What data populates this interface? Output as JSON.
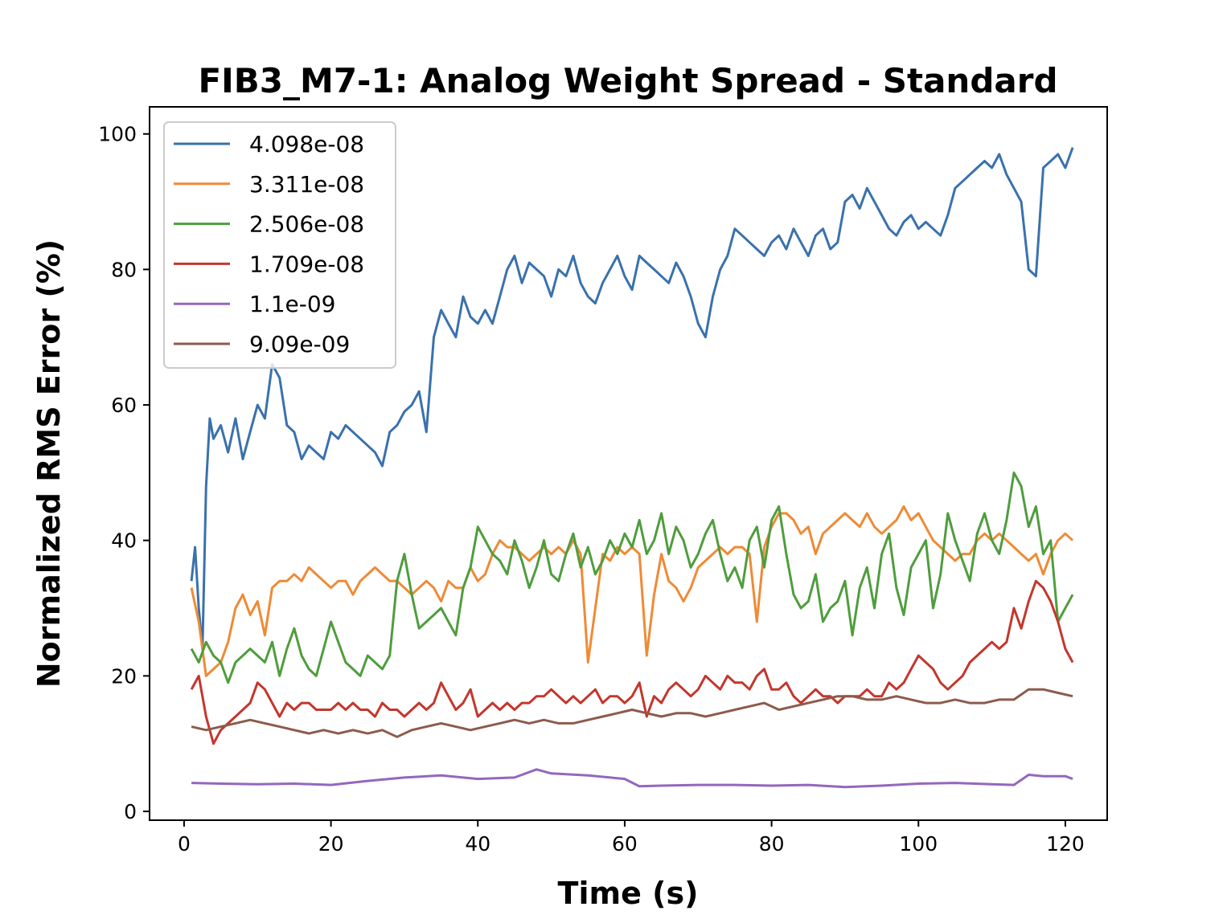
{
  "chart_data": {
    "type": "line",
    "title": "FIB3_M7-1: Analog Weight Spread - Standard",
    "xlabel": "Time (s)",
    "ylabel": "Normalized RMS Error (%)",
    "xlim": [
      -4.7,
      125.7
    ],
    "ylim": [
      -1.3,
      104
    ],
    "xticks": [
      0,
      20,
      40,
      60,
      80,
      100,
      120
    ],
    "yticks": [
      0,
      20,
      40,
      60,
      80,
      100
    ],
    "grid": false,
    "legend_position": "top-left",
    "series": [
      {
        "name": "4.098e-08",
        "color": "#3a71ad",
        "x": [
          1,
          1.5,
          2,
          2.5,
          3,
          3.5,
          4,
          5,
          6,
          7,
          8,
          9,
          10,
          11,
          12,
          13,
          14,
          15,
          16,
          17,
          18,
          19,
          20,
          21,
          22,
          23,
          24,
          25,
          26,
          27,
          28,
          29,
          30,
          31,
          32,
          33,
          34,
          35,
          36,
          37,
          38,
          39,
          40,
          41,
          42,
          43,
          44,
          45,
          46,
          47,
          48,
          49,
          50,
          51,
          52,
          53,
          54,
          55,
          56,
          57,
          58,
          59,
          60,
          61,
          62,
          63,
          64,
          65,
          66,
          67,
          68,
          69,
          70,
          71,
          72,
          73,
          74,
          75,
          76,
          77,
          78,
          79,
          80,
          81,
          82,
          83,
          84,
          85,
          86,
          87,
          88,
          89,
          90,
          91,
          92,
          93,
          94,
          95,
          96,
          97,
          98,
          99,
          100,
          101,
          102,
          103,
          104,
          105,
          106,
          107,
          108,
          109,
          110,
          111,
          112,
          113,
          114,
          115,
          116,
          117,
          118,
          119,
          120,
          121
        ],
        "y": [
          34,
          39,
          30,
          24,
          48,
          58,
          55,
          57,
          53,
          58,
          52,
          56,
          60,
          58,
          66,
          64,
          57,
          56,
          52,
          54,
          53,
          52,
          56,
          55,
          57,
          56,
          55,
          54,
          53,
          51,
          56,
          57,
          59,
          60,
          62,
          56,
          70,
          74,
          72,
          70,
          76,
          73,
          72,
          74,
          72,
          76,
          80,
          82,
          78,
          81,
          80,
          79,
          76,
          80,
          79,
          82,
          78,
          76,
          75,
          78,
          80,
          82,
          79,
          77,
          82,
          81,
          80,
          79,
          78,
          81,
          79,
          76,
          72,
          70,
          76,
          80,
          82,
          86,
          85,
          84,
          83,
          82,
          84,
          85,
          83,
          86,
          84,
          82,
          85,
          86,
          83,
          84,
          90,
          91,
          89,
          92,
          90,
          88,
          86,
          85,
          87,
          88,
          86,
          87,
          86,
          85,
          88,
          92,
          93,
          94,
          95,
          96,
          95,
          97,
          94,
          92,
          90,
          80,
          79,
          95,
          96,
          97,
          95,
          98
        ]
      },
      {
        "name": "3.311e-08",
        "color": "#ef8a35",
        "x": [
          1,
          2,
          3,
          4,
          5,
          6,
          7,
          8,
          9,
          10,
          11,
          12,
          13,
          14,
          15,
          16,
          17,
          18,
          19,
          20,
          21,
          22,
          23,
          24,
          25,
          26,
          27,
          28,
          29,
          30,
          31,
          32,
          33,
          34,
          35,
          36,
          37,
          38,
          39,
          40,
          41,
          42,
          43,
          44,
          45,
          46,
          47,
          48,
          49,
          50,
          51,
          52,
          53,
          54,
          55,
          56,
          57,
          58,
          59,
          60,
          61,
          62,
          63,
          64,
          65,
          66,
          67,
          68,
          69,
          70,
          71,
          72,
          73,
          74,
          75,
          76,
          77,
          78,
          79,
          80,
          81,
          82,
          83,
          84,
          85,
          86,
          87,
          88,
          89,
          90,
          91,
          92,
          93,
          94,
          95,
          96,
          97,
          98,
          99,
          100,
          101,
          102,
          103,
          104,
          105,
          106,
          107,
          108,
          109,
          110,
          111,
          112,
          113,
          114,
          115,
          116,
          117,
          118,
          119,
          120,
          121
        ],
        "y": [
          33,
          28,
          20,
          21,
          22,
          25,
          30,
          32,
          29,
          31,
          26,
          33,
          34,
          34,
          35,
          34,
          36,
          35,
          34,
          33,
          34,
          34,
          32,
          34,
          35,
          36,
          35,
          34,
          34,
          33,
          32,
          33,
          34,
          33,
          31,
          34,
          33,
          33,
          36,
          34,
          35,
          38,
          40,
          39,
          39,
          38,
          37,
          38,
          39,
          38,
          39,
          38,
          40,
          38,
          22,
          30,
          38,
          37,
          39,
          38,
          39,
          38,
          23,
          32,
          38,
          34,
          33,
          31,
          33,
          36,
          37,
          38,
          39,
          38,
          39,
          39,
          38,
          28,
          39,
          42,
          44,
          44,
          43,
          41,
          42,
          38,
          41,
          42,
          43,
          44,
          43,
          42,
          44,
          42,
          41,
          42,
          43,
          45,
          43,
          44,
          42,
          40,
          39,
          38,
          37,
          38,
          38,
          40,
          41,
          40,
          41,
          40,
          39,
          38,
          37,
          38,
          35,
          38,
          40,
          41,
          40
        ]
      },
      {
        "name": "2.506e-08",
        "color": "#4f9d3d",
        "x": [
          1,
          2,
          3,
          4,
          5,
          6,
          7,
          8,
          9,
          10,
          11,
          12,
          13,
          14,
          15,
          16,
          17,
          18,
          19,
          20,
          21,
          22,
          23,
          24,
          25,
          26,
          27,
          28,
          29,
          30,
          31,
          32,
          33,
          34,
          35,
          36,
          37,
          38,
          39,
          40,
          41,
          42,
          43,
          44,
          45,
          46,
          47,
          48,
          49,
          50,
          51,
          52,
          53,
          54,
          55,
          56,
          57,
          58,
          59,
          60,
          61,
          62,
          63,
          64,
          65,
          66,
          67,
          68,
          69,
          70,
          71,
          72,
          73,
          74,
          75,
          76,
          77,
          78,
          79,
          80,
          81,
          82,
          83,
          84,
          85,
          86,
          87,
          88,
          89,
          90,
          91,
          92,
          93,
          94,
          95,
          96,
          97,
          98,
          99,
          100,
          101,
          102,
          103,
          104,
          105,
          106,
          107,
          108,
          109,
          110,
          111,
          112,
          113,
          114,
          115,
          116,
          117,
          118,
          119,
          120,
          121
        ],
        "y": [
          24,
          22,
          25,
          23,
          22,
          19,
          22,
          23,
          24,
          23,
          22,
          25,
          20,
          24,
          27,
          23,
          21,
          20,
          24,
          28,
          25,
          22,
          21,
          20,
          23,
          22,
          21,
          23,
          34,
          38,
          32,
          27,
          28,
          29,
          30,
          28,
          26,
          33,
          36,
          42,
          40,
          38,
          37,
          35,
          40,
          37,
          33,
          36,
          40,
          35,
          34,
          38,
          41,
          36,
          39,
          35,
          37,
          40,
          38,
          41,
          39,
          43,
          38,
          40,
          44,
          38,
          42,
          40,
          36,
          38,
          41,
          43,
          38,
          34,
          36,
          33,
          40,
          42,
          36,
          43,
          45,
          38,
          32,
          30,
          31,
          35,
          28,
          30,
          31,
          34,
          26,
          33,
          36,
          30,
          38,
          41,
          33,
          29,
          36,
          38,
          40,
          30,
          35,
          44,
          40,
          37,
          34,
          41,
          44,
          40,
          38,
          43,
          50,
          48,
          42,
          45,
          38,
          40,
          28,
          30,
          32
        ]
      },
      {
        "name": "1.709e-08",
        "color": "#c4362d",
        "x": [
          1,
          2,
          3,
          4,
          5,
          6,
          7,
          8,
          9,
          10,
          11,
          12,
          13,
          14,
          15,
          16,
          17,
          18,
          19,
          20,
          21,
          22,
          23,
          24,
          25,
          26,
          27,
          28,
          29,
          30,
          31,
          32,
          33,
          34,
          35,
          36,
          37,
          38,
          39,
          40,
          41,
          42,
          43,
          44,
          45,
          46,
          47,
          48,
          49,
          50,
          51,
          52,
          53,
          54,
          55,
          56,
          57,
          58,
          59,
          60,
          61,
          62,
          63,
          64,
          65,
          66,
          67,
          68,
          69,
          70,
          71,
          72,
          73,
          74,
          75,
          76,
          77,
          78,
          79,
          80,
          81,
          82,
          83,
          84,
          85,
          86,
          87,
          88,
          89,
          90,
          91,
          92,
          93,
          94,
          95,
          96,
          97,
          98,
          99,
          100,
          101,
          102,
          103,
          104,
          105,
          106,
          107,
          108,
          109,
          110,
          111,
          112,
          113,
          114,
          115,
          116,
          117,
          118,
          119,
          120,
          121
        ],
        "y": [
          18,
          20,
          14,
          10,
          12,
          13,
          14,
          15,
          16,
          19,
          18,
          16,
          14,
          16,
          15,
          16,
          16,
          15,
          15,
          15,
          16,
          15,
          16,
          15,
          15,
          14,
          16,
          15,
          15,
          14,
          15,
          16,
          15,
          16,
          19,
          17,
          15,
          16,
          18,
          14,
          15,
          16,
          15,
          16,
          15,
          16,
          16,
          17,
          17,
          18,
          17,
          16,
          17,
          16,
          17,
          18,
          16,
          17,
          17,
          16,
          17,
          19,
          14,
          17,
          16,
          18,
          19,
          18,
          17,
          18,
          20,
          19,
          18,
          20,
          19,
          19,
          18,
          20,
          21,
          18,
          18,
          19,
          17,
          16,
          17,
          18,
          17,
          17,
          16,
          17,
          17,
          17,
          18,
          17,
          17,
          19,
          18,
          19,
          21,
          23,
          22,
          21,
          19,
          18,
          19,
          20,
          22,
          23,
          24,
          25,
          24,
          25,
          30,
          27,
          31,
          34,
          33,
          31,
          28,
          24,
          22
        ]
      },
      {
        "name": "1.1e-09",
        "color": "#9467bd",
        "x": [
          1,
          5,
          10,
          15,
          20,
          25,
          30,
          35,
          40,
          45,
          48,
          50,
          55,
          60,
          62,
          65,
          70,
          75,
          80,
          85,
          90,
          95,
          100,
          105,
          110,
          113,
          115,
          117,
          120,
          121
        ],
        "y": [
          4.2,
          4.1,
          4.0,
          4.1,
          3.9,
          4.5,
          5.0,
          5.3,
          4.8,
          5.0,
          6.2,
          5.6,
          5.3,
          4.8,
          3.7,
          3.8,
          3.9,
          3.9,
          3.8,
          3.9,
          3.6,
          3.8,
          4.1,
          4.2,
          4.0,
          3.9,
          5.4,
          5.2,
          5.2,
          4.8
        ]
      },
      {
        "name": "9.09e-09",
        "color": "#8c5b4c",
        "x": [
          1,
          3,
          5,
          7,
          9,
          11,
          13,
          15,
          17,
          19,
          21,
          23,
          25,
          27,
          29,
          31,
          33,
          35,
          37,
          39,
          41,
          43,
          45,
          47,
          49,
          51,
          53,
          55,
          57,
          59,
          61,
          63,
          65,
          67,
          69,
          71,
          73,
          75,
          77,
          79,
          81,
          83,
          85,
          87,
          89,
          91,
          93,
          95,
          97,
          99,
          101,
          103,
          105,
          107,
          109,
          111,
          113,
          115,
          117,
          119,
          121
        ],
        "y": [
          12.5,
          12,
          12.5,
          13,
          13.5,
          13,
          12.5,
          12,
          11.5,
          12,
          11.5,
          12,
          11.5,
          12,
          11,
          12,
          12.5,
          13,
          12.5,
          12,
          12.5,
          13,
          13.5,
          13,
          13.5,
          13,
          13,
          13.5,
          14,
          14.5,
          15,
          14.5,
          14,
          14.5,
          14.5,
          14,
          14.5,
          15,
          15.5,
          16,
          15,
          15.5,
          16,
          16.5,
          17,
          17,
          16.5,
          16.5,
          17,
          16.5,
          16,
          16,
          16.5,
          16,
          16,
          16.5,
          16.5,
          18,
          18,
          17.5,
          17
        ]
      }
    ]
  }
}
